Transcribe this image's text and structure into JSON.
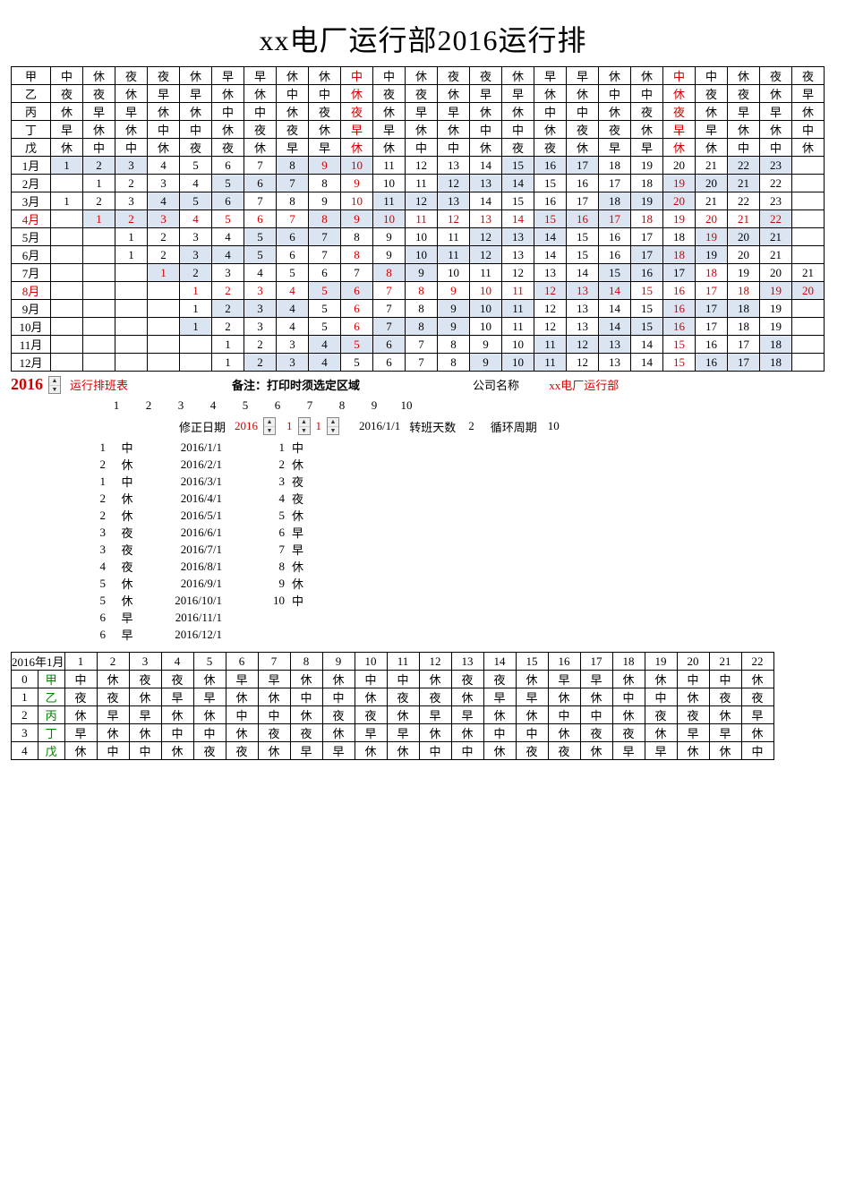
{
  "title": "xx电厂运行部2016运行排",
  "colors": {
    "red": "#d40000",
    "green": "#008000",
    "shade": "#dbe5f1",
    "border": "#000000",
    "bg": "#ffffff",
    "text": "#000000"
  },
  "shift_rows": [
    {
      "label": "甲",
      "cells": [
        "中",
        "休",
        "夜",
        "夜",
        "休",
        "早",
        "早",
        "休",
        "休",
        "中",
        "中",
        "休",
        "夜",
        "夜",
        "休",
        "早",
        "早",
        "休",
        "休",
        "中",
        "中",
        "休",
        "夜",
        "夜"
      ]
    },
    {
      "label": "乙",
      "cells": [
        "夜",
        "夜",
        "休",
        "早",
        "早",
        "休",
        "休",
        "中",
        "中",
        "休",
        "夜",
        "夜",
        "休",
        "早",
        "早",
        "休",
        "休",
        "中",
        "中",
        "休",
        "夜",
        "夜",
        "休",
        "早"
      ]
    },
    {
      "label": "丙",
      "cells": [
        "休",
        "早",
        "早",
        "休",
        "休",
        "中",
        "中",
        "休",
        "夜",
        "夜",
        "休",
        "早",
        "早",
        "休",
        "休",
        "中",
        "中",
        "休",
        "夜",
        "夜",
        "休",
        "早",
        "早",
        "休"
      ]
    },
    {
      "label": "丁",
      "cells": [
        "早",
        "休",
        "休",
        "中",
        "中",
        "休",
        "夜",
        "夜",
        "休",
        "早",
        "早",
        "休",
        "休",
        "中",
        "中",
        "休",
        "夜",
        "夜",
        "休",
        "早",
        "早",
        "休",
        "休",
        "中"
      ]
    },
    {
      "label": "戊",
      "cells": [
        "休",
        "中",
        "中",
        "休",
        "夜",
        "夜",
        "休",
        "早",
        "早",
        "休",
        "休",
        "中",
        "中",
        "休",
        "夜",
        "夜",
        "休",
        "早",
        "早",
        "休",
        "休",
        "中",
        "中",
        "休"
      ]
    }
  ],
  "shift_red_cols": [
    9,
    19
  ],
  "month_rows": [
    {
      "label": "1月",
      "label_red": false,
      "offset": 0,
      "start": 1,
      "end": 23,
      "red_days": [
        9,
        10
      ],
      "shaded": [
        1,
        2,
        3,
        8,
        9,
        10,
        15,
        16,
        17,
        22,
        23
      ]
    },
    {
      "label": "2月",
      "label_red": false,
      "offset": 1,
      "start": 1,
      "end": 22,
      "red_days": [
        9,
        19
      ],
      "shaded": [
        5,
        6,
        7,
        12,
        13,
        14,
        19,
        20,
        21
      ]
    },
    {
      "label": "3月",
      "label_red": false,
      "offset": 0,
      "start": 1,
      "end": 23,
      "red_days": [
        10,
        20
      ],
      "shaded": [
        4,
        5,
        6,
        11,
        12,
        13,
        18,
        19,
        20
      ]
    },
    {
      "label": "4月",
      "label_red": true,
      "offset": 1,
      "start": 1,
      "end": 22,
      "red_days": [
        1,
        2,
        3,
        4,
        5,
        6,
        7,
        8,
        9,
        10,
        11,
        12,
        13,
        14,
        15,
        16,
        17,
        18,
        19,
        20,
        21,
        22
      ],
      "shaded": [
        1,
        2,
        3,
        8,
        9,
        10,
        15,
        16,
        17,
        22
      ]
    },
    {
      "label": "5月",
      "label_red": false,
      "offset": 2,
      "start": 1,
      "end": 21,
      "red_days": [
        19
      ],
      "shaded": [
        5,
        6,
        7,
        12,
        13,
        14,
        19,
        20,
        21
      ]
    },
    {
      "label": "6月",
      "label_red": false,
      "offset": 2,
      "start": 1,
      "end": 21,
      "red_days": [
        8,
        18
      ],
      "shaded": [
        3,
        4,
        5,
        10,
        11,
        12,
        17,
        18,
        19
      ]
    },
    {
      "label": "7月",
      "label_red": false,
      "offset": 3,
      "start": 1,
      "end": 21,
      "red_days": [
        1,
        8,
        18
      ],
      "shaded": [
        1,
        2,
        8,
        9,
        15,
        16,
        17
      ]
    },
    {
      "label": "8月",
      "label_red": true,
      "offset": 4,
      "start": 1,
      "end": 20,
      "red_days": [
        1,
        2,
        3,
        4,
        5,
        6,
        7,
        8,
        9,
        10,
        11,
        12,
        13,
        14,
        15,
        16,
        17,
        18,
        19,
        20
      ],
      "shaded": [
        5,
        6,
        12,
        13,
        14,
        19,
        20
      ]
    },
    {
      "label": "9月",
      "label_red": false,
      "offset": 4,
      "start": 1,
      "end": 19,
      "red_days": [
        6,
        16
      ],
      "shaded": [
        2,
        3,
        4,
        9,
        10,
        11,
        16,
        17,
        18
      ]
    },
    {
      "label": "10月",
      "label_red": false,
      "offset": 4,
      "start": 1,
      "end": 19,
      "red_days": [
        6,
        16
      ],
      "shaded": [
        1,
        7,
        8,
        9,
        14,
        15,
        16
      ]
    },
    {
      "label": "11月",
      "label_red": false,
      "offset": 5,
      "start": 1,
      "end": 18,
      "red_days": [
        5,
        15
      ],
      "shaded": [
        4,
        5,
        6,
        11,
        12,
        13,
        18
      ]
    },
    {
      "label": "12月",
      "label_red": false,
      "offset": 5,
      "start": 1,
      "end": 18,
      "red_days": [
        15
      ],
      "shaded": [
        2,
        3,
        4,
        9,
        10,
        11,
        16,
        17,
        18
      ]
    }
  ],
  "year_input": "2016",
  "schedule_label": "运行排班表",
  "note_label": "备注：打印时须选定区域",
  "company_label": "公司名称",
  "company_name": "xx电厂运行部",
  "number_header": [
    1,
    2,
    3,
    4,
    5,
    6,
    7,
    8,
    9,
    10
  ],
  "correction": {
    "label": "修正日期",
    "year": "2016",
    "month": "1",
    "day": "1",
    "date_display": "2016/1/1",
    "transfer_label": "转班天数",
    "transfer_days": "2",
    "cycle_label": "循环周期",
    "cycle_days": "10"
  },
  "left_list": [
    {
      "a": "1",
      "b": "中",
      "c": "2016/1/1"
    },
    {
      "a": "2",
      "b": "休",
      "c": "2016/2/1"
    },
    {
      "a": "1",
      "b": "中",
      "c": "2016/3/1"
    },
    {
      "a": "2",
      "b": "休",
      "c": "2016/4/1"
    },
    {
      "a": "2",
      "b": "休",
      "c": "2016/5/1"
    },
    {
      "a": "3",
      "b": "夜",
      "c": "2016/6/1"
    },
    {
      "a": "3",
      "b": "夜",
      "c": "2016/7/1"
    },
    {
      "a": "4",
      "b": "夜",
      "c": "2016/8/1"
    },
    {
      "a": "5",
      "b": "休",
      "c": "2016/9/1"
    },
    {
      "a": "5",
      "b": "休",
      "c": "2016/10/1"
    },
    {
      "a": "6",
      "b": "早",
      "c": "2016/11/1"
    },
    {
      "a": "6",
      "b": "早",
      "c": "2016/12/1"
    }
  ],
  "right_list": [
    {
      "a": "1",
      "b": "中"
    },
    {
      "a": "2",
      "b": "休"
    },
    {
      "a": "3",
      "b": "夜"
    },
    {
      "a": "4",
      "b": "夜"
    },
    {
      "a": "5",
      "b": "休"
    },
    {
      "a": "6",
      "b": "早"
    },
    {
      "a": "7",
      "b": "早"
    },
    {
      "a": "8",
      "b": "休"
    },
    {
      "a": "9",
      "b": "休"
    },
    {
      "a": "10",
      "b": "中"
    }
  ],
  "bottom_table": {
    "header_label": "2016年1月",
    "day_count": 22,
    "rows": [
      {
        "idx": "0",
        "team": "甲",
        "cells": [
          "中",
          "休",
          "夜",
          "夜",
          "休",
          "早",
          "早",
          "休",
          "休",
          "中",
          "中",
          "休",
          "夜",
          "夜",
          "休",
          "早",
          "早",
          "休",
          "休",
          "中",
          "中",
          "休"
        ]
      },
      {
        "idx": "1",
        "team": "乙",
        "cells": [
          "夜",
          "夜",
          "休",
          "早",
          "早",
          "休",
          "休",
          "中",
          "中",
          "休",
          "夜",
          "夜",
          "休",
          "早",
          "早",
          "休",
          "休",
          "中",
          "中",
          "休",
          "夜",
          "夜"
        ]
      },
      {
        "idx": "2",
        "team": "丙",
        "cells": [
          "休",
          "早",
          "早",
          "休",
          "休",
          "中",
          "中",
          "休",
          "夜",
          "夜",
          "休",
          "早",
          "早",
          "休",
          "休",
          "中",
          "中",
          "休",
          "夜",
          "夜",
          "休",
          "早"
        ]
      },
      {
        "idx": "3",
        "team": "丁",
        "cells": [
          "早",
          "休",
          "休",
          "中",
          "中",
          "休",
          "夜",
          "夜",
          "休",
          "早",
          "早",
          "休",
          "休",
          "中",
          "中",
          "休",
          "夜",
          "夜",
          "休",
          "早",
          "早",
          "休"
        ]
      },
      {
        "idx": "4",
        "team": "戊",
        "cells": [
          "休",
          "中",
          "中",
          "休",
          "夜",
          "夜",
          "休",
          "早",
          "早",
          "休",
          "休",
          "中",
          "中",
          "休",
          "夜",
          "夜",
          "休",
          "早",
          "早",
          "休",
          "休",
          "中"
        ]
      }
    ]
  }
}
